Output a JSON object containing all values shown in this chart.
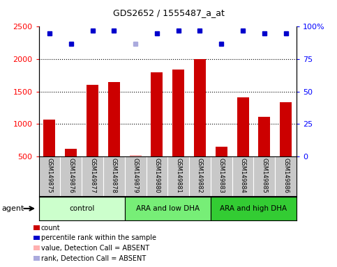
{
  "title": "GDS2652 / 1555487_a_at",
  "samples": [
    "GSM149875",
    "GSM149876",
    "GSM149877",
    "GSM149878",
    "GSM149879",
    "GSM149880",
    "GSM149881",
    "GSM149882",
    "GSM149883",
    "GSM149884",
    "GSM149885",
    "GSM149886"
  ],
  "counts": [
    1060,
    610,
    1600,
    1650,
    null,
    1800,
    1840,
    2000,
    650,
    1410,
    1110,
    1330
  ],
  "absent_counts": [
    null,
    null,
    null,
    null,
    520,
    null,
    null,
    null,
    null,
    null,
    null,
    null
  ],
  "percentile_ranks": [
    95,
    87,
    97,
    97,
    null,
    95,
    97,
    97,
    87,
    97,
    95,
    95
  ],
  "absent_ranks": [
    null,
    null,
    null,
    null,
    87,
    null,
    null,
    null,
    null,
    null,
    null,
    null
  ],
  "ylim_left": [
    500,
    2500
  ],
  "ylim_right": [
    0,
    100
  ],
  "yticks_left": [
    500,
    1000,
    1500,
    2000,
    2500
  ],
  "yticks_right": [
    0,
    25,
    50,
    75,
    100
  ],
  "bar_color": "#CC0000",
  "absent_bar_color": "#FFB0B0",
  "dot_color": "#0000CC",
  "absent_dot_color": "#AAAADD",
  "groups": [
    {
      "label": "control",
      "start": 0,
      "end": 3,
      "color": "#CCFFCC"
    },
    {
      "label": "ARA and low DHA",
      "start": 4,
      "end": 7,
      "color": "#77EE77"
    },
    {
      "label": "ARA and high DHA",
      "start": 8,
      "end": 11,
      "color": "#33CC33"
    }
  ],
  "legend_items": [
    {
      "label": "count",
      "color": "#CC0000"
    },
    {
      "label": "percentile rank within the sample",
      "color": "#0000CC"
    },
    {
      "label": "value, Detection Call = ABSENT",
      "color": "#FFB0B0"
    },
    {
      "label": "rank, Detection Call = ABSENT",
      "color": "#AAAADD"
    }
  ],
  "agent_label": "agent",
  "sample_bg_color": "#C8C8C8",
  "plot_bg": "#FFFFFF",
  "grid_color": "#000000",
  "grid_style": ":",
  "grid_levels": [
    1000,
    1500,
    2000
  ],
  "dot_size": 5,
  "bar_width": 0.55
}
